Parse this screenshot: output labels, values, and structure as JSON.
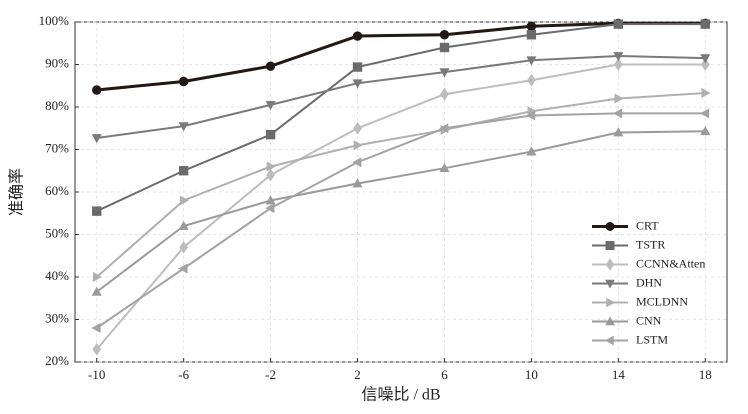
{
  "chart_data": {
    "type": "line",
    "xlabel": "信噪比 / dB",
    "ylabel": "准确率",
    "x": [
      -10,
      -6,
      -2,
      2,
      6,
      10,
      14,
      18
    ],
    "xlim": [
      -11,
      19
    ],
    "xticks": [
      -10,
      -6,
      -2,
      2,
      6,
      10,
      14,
      18
    ],
    "ylim": [
      20,
      100
    ],
    "yticks": [
      {
        "value": 20,
        "label": "20%"
      },
      {
        "value": 30,
        "label": "30%"
      },
      {
        "value": 40,
        "label": "40%"
      },
      {
        "value": 50,
        "label": "50%"
      },
      {
        "value": 60,
        "label": "60%"
      },
      {
        "value": 70,
        "label": "70%"
      },
      {
        "value": 80,
        "label": "80%"
      },
      {
        "value": 90,
        "label": "90%"
      },
      {
        "value": 100,
        "label": "100%"
      }
    ],
    "grid": true,
    "legend": "lower right",
    "series": [
      {
        "name": "CRT",
        "color": "#231815",
        "marker": "o",
        "width": 3,
        "values": [
          84,
          86,
          89.6,
          96.7,
          97,
          99,
          99.7,
          99.7
        ]
      },
      {
        "name": "TSTR",
        "color": "#6b6b6b",
        "marker": "s",
        "width": 2,
        "values": [
          55.5,
          65,
          73.5,
          89.4,
          94,
          97,
          99.5,
          99.5
        ]
      },
      {
        "name": "CCNN&Atten",
        "color": "#bdbdbd",
        "marker": "d",
        "width": 2,
        "values": [
          23,
          47,
          64,
          75,
          83,
          86.3,
          90,
          90
        ]
      },
      {
        "name": "DHN",
        "color": "#7a7a7a",
        "marker": "v",
        "width": 2,
        "values": [
          72.7,
          75.5,
          80.5,
          85.6,
          88.2,
          91,
          92,
          91.5
        ]
      },
      {
        "name": "MCLDNN",
        "color": "#b0b0b0",
        "marker": ">",
        "width": 2,
        "values": [
          40,
          58,
          66,
          71,
          74.6,
          79,
          82,
          83.3
        ]
      },
      {
        "name": "CNN",
        "color": "#9a9a9a",
        "marker": "^",
        "width": 2,
        "values": [
          36.5,
          52,
          58,
          62,
          65.6,
          69.5,
          74,
          74.3
        ]
      },
      {
        "name": "LSTM",
        "color": "#a3a3a3",
        "marker": "<",
        "width": 2,
        "values": [
          28,
          42,
          56.2,
          67,
          75,
          78,
          78.5,
          78.5
        ]
      }
    ]
  }
}
